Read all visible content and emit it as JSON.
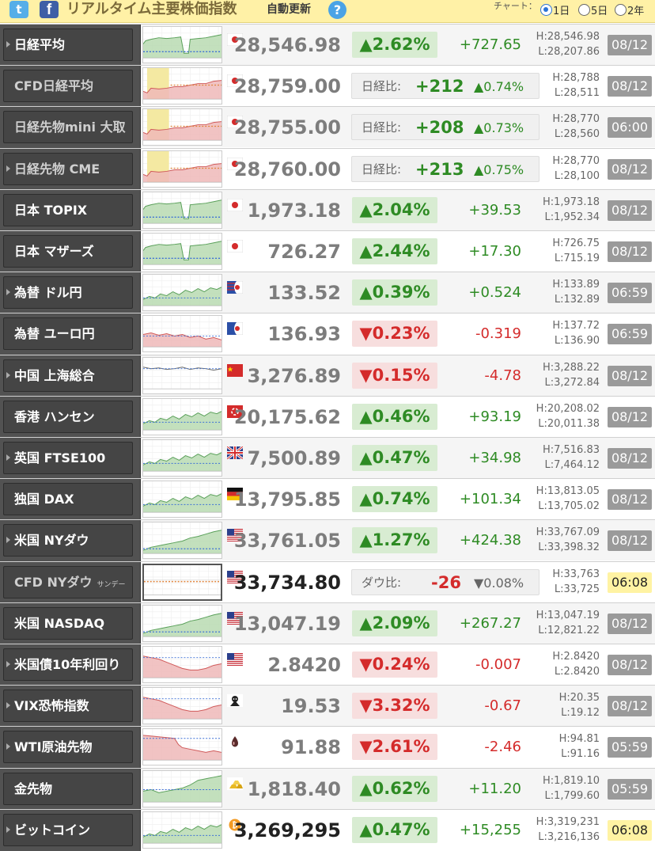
{
  "header": {
    "twitter_icon": "twitter-icon",
    "facebook_icon": "facebook-icon",
    "twitter_glyph": "t",
    "facebook_glyph": "f",
    "title": "リアルタイム主要株価指数",
    "auto_update": "自動更新",
    "help": "?",
    "chart_label": "チャート：",
    "range_options": [
      "1日",
      "5日",
      "2年"
    ],
    "selected_range": "1日"
  },
  "colors": {
    "up": "#2e8b24",
    "down": "#d42b2b",
    "name_bg": "#454545",
    "header_bg": "#fff1a6",
    "highlight_date": "#fff3a3"
  },
  "rows": [
    {
      "name": "日経平均",
      "sub": "",
      "flag": "jp",
      "price": "28,546.98",
      "type": "pct",
      "dir": "up",
      "pct": "▲2.62%",
      "change": "+727.65",
      "high": "H:28,546.98",
      "low": "L:28,207.86",
      "date": "08/12",
      "date_hl": false,
      "arrow": true
    },
    {
      "name": "CFD日経平均",
      "sub": "",
      "flag": "jp",
      "price": "28,759.00",
      "type": "diff",
      "dir": "up",
      "diff_label": "日経比:",
      "diff": "+212",
      "diff_pct": "▲0.74%",
      "high": "H:28,788",
      "low": "L:28,511",
      "date": "08/12",
      "date_hl": false,
      "arrow": false
    },
    {
      "name": "日経先物mini 大取",
      "sub": "",
      "flag": "jp",
      "price": "28,755.00",
      "type": "diff",
      "dir": "up",
      "diff_label": "日経比:",
      "diff": "+208",
      "diff_pct": "▲0.73%",
      "high": "H:28,770",
      "low": "L:28,560",
      "date": "06:00",
      "date_hl": false,
      "arrow": false
    },
    {
      "name": "日経先物 CME",
      "sub": "",
      "flag": "jp",
      "price": "28,760.00",
      "type": "diff",
      "dir": "up",
      "diff_label": "日経比:",
      "diff": "+213",
      "diff_pct": "▲0.75%",
      "high": "H:28,770",
      "low": "L:28,100",
      "date": "08/12",
      "date_hl": false,
      "arrow": true
    },
    {
      "name": "日本 TOPIX",
      "sub": "",
      "flag": "jp",
      "price": "1,973.18",
      "type": "pct",
      "dir": "up",
      "pct": "▲2.04%",
      "change": "+39.53",
      "high": "H:1,973.18",
      "low": "L:1,952.34",
      "date": "08/12",
      "date_hl": false,
      "arrow": false
    },
    {
      "name": "日本 マザーズ",
      "sub": "",
      "flag": "jp",
      "price": "726.27",
      "type": "pct",
      "dir": "up",
      "pct": "▲2.44%",
      "change": "+17.30",
      "high": "H:726.75",
      "low": "L:715.19",
      "date": "08/12",
      "date_hl": false,
      "arrow": false
    },
    {
      "name": "為替 ドル円",
      "sub": "",
      "flag": "usdjpy",
      "price": "133.52",
      "type": "pct",
      "dir": "up",
      "pct": "▲0.39%",
      "change": "+0.524",
      "high": "H:133.89",
      "low": "L:132.89",
      "date": "06:59",
      "date_hl": false,
      "arrow": true
    },
    {
      "name": "為替 ユーロ円",
      "sub": "",
      "flag": "eurjpy",
      "price": "136.93",
      "type": "pct",
      "dir": "dn",
      "pct": "▼0.23%",
      "change": "-0.319",
      "high": "H:137.72",
      "low": "L:136.90",
      "date": "06:59",
      "date_hl": false,
      "arrow": false
    },
    {
      "name": "中国 上海総合",
      "sub": "",
      "flag": "cn",
      "price": "3,276.89",
      "type": "pct",
      "dir": "dn",
      "pct": "▼0.15%",
      "change": "-4.78",
      "high": "H:3,288.22",
      "low": "L:3,272.84",
      "date": "08/12",
      "date_hl": false,
      "arrow": true
    },
    {
      "name": "香港 ハンセン",
      "sub": "",
      "flag": "hk",
      "price": "20,175.62",
      "type": "pct",
      "dir": "up",
      "pct": "▲0.46%",
      "change": "+93.19",
      "high": "H:20,208.02",
      "low": "L:20,011.38",
      "date": "08/12",
      "date_hl": false,
      "arrow": false
    },
    {
      "name": "英国 FTSE100",
      "sub": "",
      "flag": "uk",
      "price": "7,500.89",
      "type": "pct",
      "dir": "up",
      "pct": "▲0.47%",
      "change": "+34.98",
      "high": "H:7,516.83",
      "low": "L:7,464.12",
      "date": "08/12",
      "date_hl": false,
      "arrow": true
    },
    {
      "name": "独国 DAX",
      "sub": "",
      "flag": "de",
      "price": "13,795.85",
      "type": "pct",
      "dir": "up",
      "pct": "▲0.74%",
      "change": "+101.34",
      "high": "H:13,813.05",
      "low": "L:13,705.02",
      "date": "08/12",
      "date_hl": false,
      "arrow": false
    },
    {
      "name": "米国 NYダウ",
      "sub": "",
      "flag": "us",
      "price": "33,761.05",
      "type": "pct",
      "dir": "up",
      "pct": "▲1.27%",
      "change": "+424.38",
      "high": "H:33,767.09",
      "low": "L:33,398.32",
      "date": "08/12",
      "date_hl": false,
      "arrow": true
    },
    {
      "name": "CFD NYダウ",
      "sub": "サンデー",
      "flag": "us",
      "price": "33,734.80",
      "type": "diff",
      "dir": "dn",
      "diff_label": "ダウ比:",
      "diff": "-26",
      "diff_pct": "▼0.08%",
      "high": "H:33,763",
      "low": "L:33,725",
      "date": "06:08",
      "date_hl": true,
      "arrow": false
    },
    {
      "name": "米国 NASDAQ",
      "sub": "",
      "flag": "us",
      "price": "13,047.19",
      "type": "pct",
      "dir": "up",
      "pct": "▲2.09%",
      "change": "+267.27",
      "high": "H:13,047.19",
      "low": "L:12,821.22",
      "date": "08/12",
      "date_hl": false,
      "arrow": false
    },
    {
      "name": "米国債10年利回り",
      "sub": "",
      "flag": "us",
      "price": "2.8420",
      "type": "pct",
      "dir": "dn",
      "pct": "▼0.24%",
      "change": "-0.007",
      "high": "H:2.8420",
      "low": "L:2.8420",
      "date": "08/12",
      "date_hl": false,
      "arrow": true
    },
    {
      "name": "VIX恐怖指数",
      "sub": "",
      "flag": "vix",
      "price": "19.53",
      "type": "pct",
      "dir": "dn",
      "pct": "▼3.32%",
      "change": "-0.67",
      "high": "H:20.35",
      "low": "L:19.12",
      "date": "08/12",
      "date_hl": false,
      "arrow": true
    },
    {
      "name": "WTI原油先物",
      "sub": "",
      "flag": "oil",
      "price": "91.88",
      "type": "pct",
      "dir": "dn",
      "pct": "▼2.61%",
      "change": "-2.46",
      "high": "H:94.81",
      "low": "L:91.16",
      "date": "05:59",
      "date_hl": false,
      "arrow": true
    },
    {
      "name": "金先物",
      "sub": "",
      "flag": "gold",
      "price": "1,818.40",
      "type": "pct",
      "dir": "up",
      "pct": "▲0.62%",
      "change": "+11.20",
      "high": "H:1,819.10",
      "low": "L:1,799.60",
      "date": "05:59",
      "date_hl": false,
      "arrow": false
    },
    {
      "name": "ビットコイン",
      "sub": "",
      "flag": "btc",
      "price": "3,269,295",
      "type": "pct",
      "dir": "up",
      "pct": "▲0.47%",
      "change": "+15,255",
      "high": "H:3,319,231",
      "low": "L:3,216,136",
      "date": "06:08",
      "date_hl": true,
      "arrow": true
    }
  ]
}
